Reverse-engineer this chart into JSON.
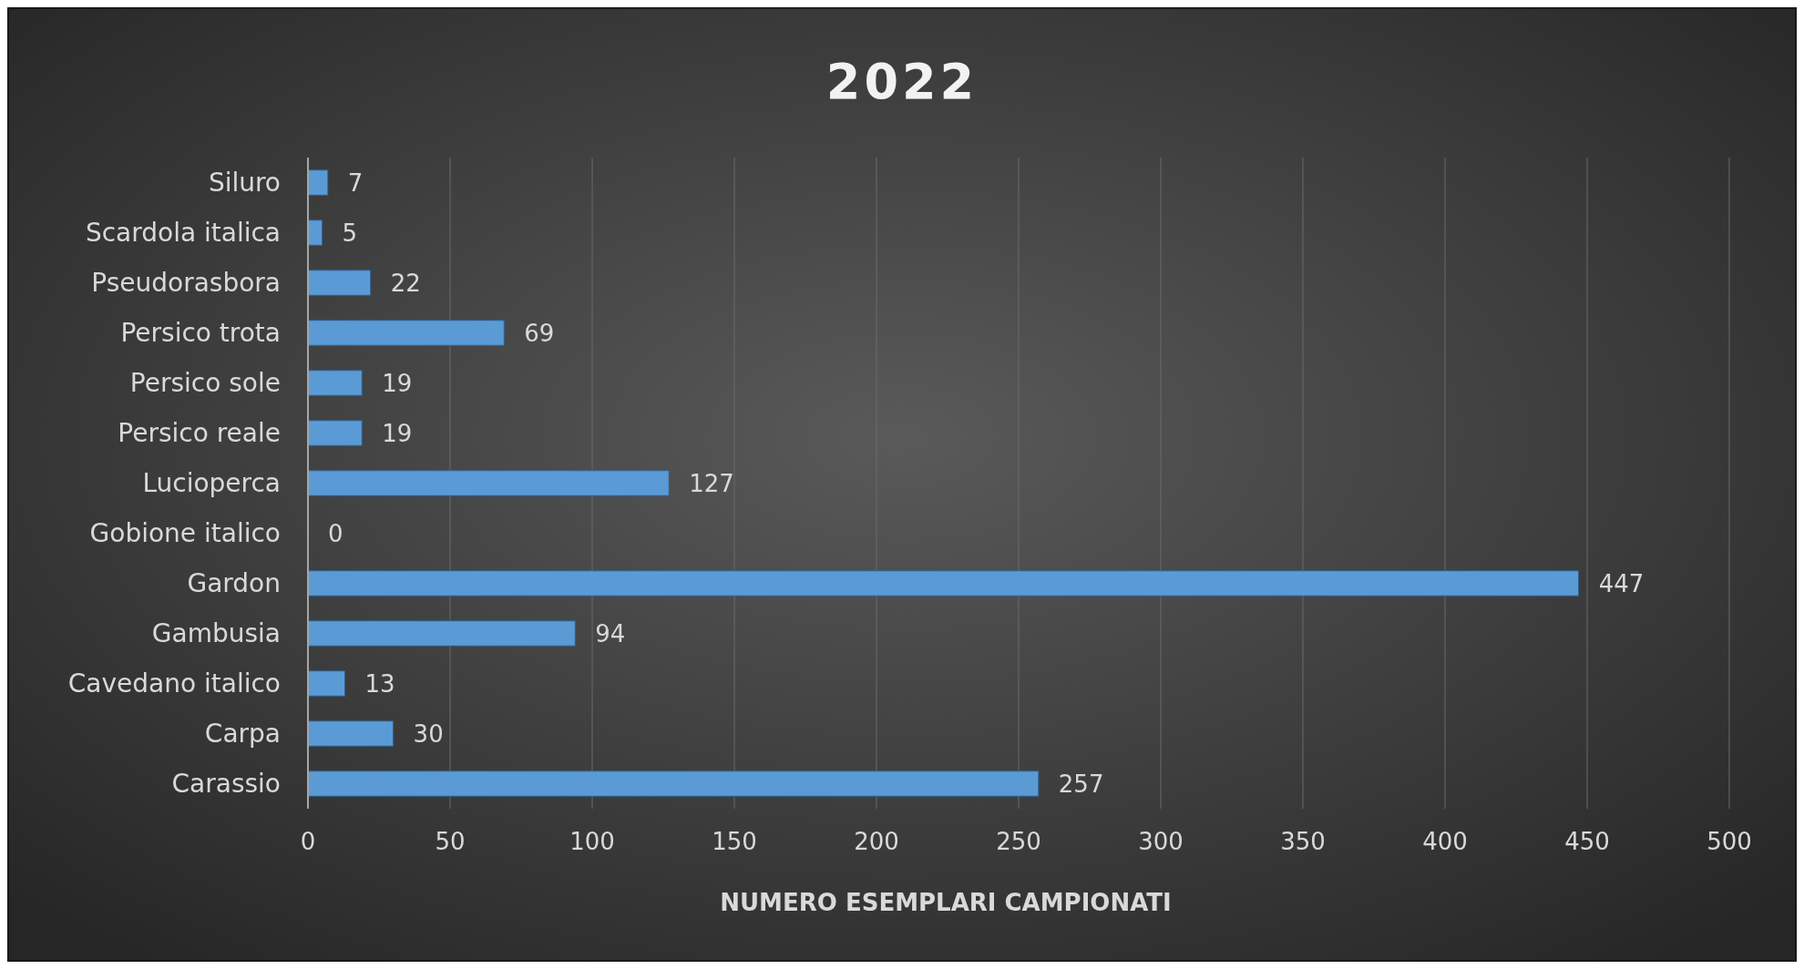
{
  "chart_data": {
    "type": "bar",
    "orientation": "horizontal",
    "title": "2022",
    "xlabel": "NUMERO ESEMPLARI CAMPIONATI",
    "categories": [
      "Siluro",
      "Scardola italica",
      "Pseudorasbora",
      "Persico trota",
      "Persico sole",
      "Persico reale",
      "Lucioperca",
      "Gobione italico",
      "Gardon",
      "Gambusia",
      "Cavedano italico",
      "Carpa",
      "Carassio"
    ],
    "values": [
      7,
      5,
      22,
      69,
      19,
      19,
      127,
      0,
      447,
      94,
      13,
      30,
      257
    ],
    "color": "#5b9bd5",
    "xlim": [
      0,
      500
    ],
    "xticks": [
      0,
      50,
      100,
      150,
      200,
      250,
      300,
      350,
      400,
      450,
      500
    ],
    "grid": "x",
    "data_labels": true
  }
}
